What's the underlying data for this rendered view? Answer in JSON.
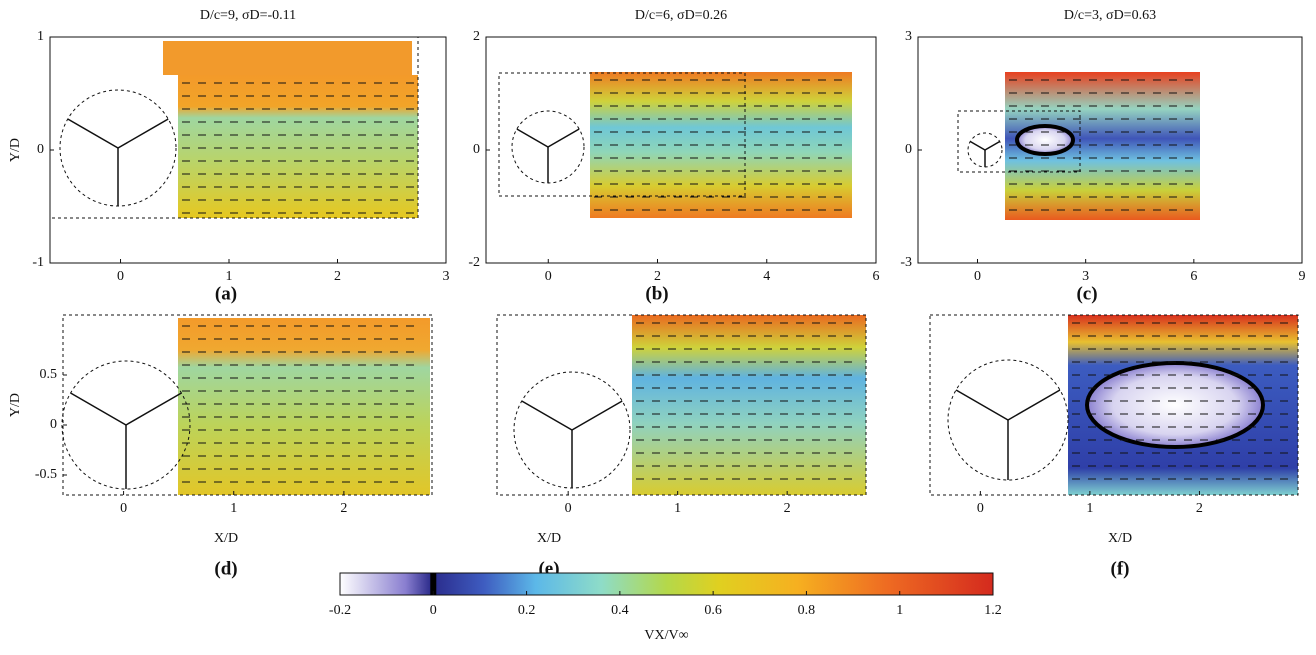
{
  "chart_data": [
    {
      "type": "field",
      "title": "D/c=9, σD=-0.11",
      "label": "(a)",
      "ylabel": "Y/D",
      "xlim": [
        -0.65,
        3
      ],
      "ylim": [
        -1,
        1
      ],
      "xticks": [
        0,
        1,
        2,
        3
      ],
      "yticks": [
        -1,
        0,
        1
      ]
    },
    {
      "type": "field",
      "title": "D/c=6, σD=0.26",
      "label": "(b)",
      "xlim": [
        -1.14,
        6
      ],
      "ylim": [
        -2,
        2
      ],
      "xticks": [
        0,
        2,
        4,
        6
      ],
      "yticks": [
        -2,
        0,
        2
      ]
    },
    {
      "type": "field",
      "title": "D/c=3, σD=0.63",
      "label": "(c)",
      "xlim": [
        -1.65,
        9
      ],
      "ylim": [
        -3,
        3
      ],
      "xticks": [
        0,
        3,
        6,
        9
      ],
      "yticks": [
        -3,
        0,
        3
      ]
    },
    {
      "type": "field",
      "label": "(d)",
      "ylabel": "Y/D",
      "xlabel": "X/D",
      "xlim": [
        -0.55,
        2.8
      ],
      "ylim": [
        -0.7,
        1.1
      ],
      "xticks": [
        0,
        1,
        2
      ],
      "yticks": [
        -0.5,
        0,
        0.5
      ]
    },
    {
      "type": "field",
      "label": "(e)",
      "xlabel": "X/D",
      "xlim": [
        -0.65,
        2.72
      ],
      "ylim": [
        -0.7,
        1.1
      ],
      "xticks": [
        0,
        1,
        2
      ]
    },
    {
      "type": "field",
      "label": "(f)",
      "xlabel": "X/D",
      "xlim": [
        -0.46,
        2.9
      ],
      "ylim": [
        -0.7,
        1.1
      ],
      "xticks": [
        0,
        1,
        2
      ]
    },
    {
      "type": "colorbar",
      "xlabel": "VX/V∞",
      "xlim": [
        -0.2,
        1.2
      ],
      "xticks": [
        -0.2,
        0,
        0.2,
        0.4,
        0.6,
        0.8,
        1.0,
        1.2
      ]
    }
  ]
}
